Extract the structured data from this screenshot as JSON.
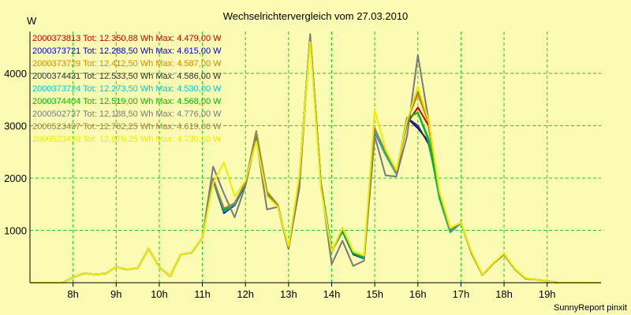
{
  "chart_data": {
    "type": "line",
    "title": "Wechselrichtervergleich vom 27.03.2010",
    "ylabel": "W",
    "xlabel": "",
    "footer": "SunnyReport pinxit",
    "ylim": [
      0,
      4800
    ],
    "xlim": [
      7.0,
      20.25
    ],
    "yticks": [
      1000,
      2000,
      3000,
      4000
    ],
    "ytick_labels": [
      "1000",
      "2000",
      "3000",
      "4000"
    ],
    "xticks": [
      8,
      9,
      10,
      11,
      12,
      13,
      14,
      15,
      16,
      17,
      18,
      19
    ],
    "xtick_labels": [
      "8h",
      "9h",
      "10h",
      "11h",
      "12h",
      "13h",
      "14h",
      "15h",
      "16h",
      "17h",
      "18h",
      "19h"
    ],
    "grid": true,
    "legend_position": "top-left",
    "x": [
      7.0,
      7.25,
      7.5,
      7.75,
      8.0,
      8.25,
      8.5,
      8.75,
      9.0,
      9.25,
      9.5,
      9.75,
      10.0,
      10.25,
      10.5,
      10.75,
      11.0,
      11.25,
      11.5,
      11.75,
      12.0,
      12.25,
      12.5,
      12.75,
      13.0,
      13.25,
      13.5,
      13.75,
      14.0,
      14.25,
      14.5,
      14.75,
      15.0,
      15.25,
      15.5,
      15.75,
      16.0,
      16.25,
      16.5,
      16.75,
      17.0,
      17.25,
      17.5,
      17.75,
      18.0,
      18.25,
      18.5,
      18.75,
      19.0,
      19.25,
      19.5,
      19.75,
      20.0,
      20.25
    ],
    "series": [
      {
        "name": "2000373813",
        "tot": "12.350,88",
        "max": "4.479,00",
        "color": "#cc0000",
        "values": [
          0,
          0,
          0,
          0,
          100,
          180,
          160,
          170,
          300,
          250,
          280,
          650,
          300,
          120,
          540,
          570,
          860,
          1980,
          1400,
          1520,
          1900,
          2850,
          1720,
          1480,
          650,
          2000,
          4700,
          1900,
          600,
          1000,
          560,
          480,
          2900,
          2450,
          2100,
          3050,
          3350,
          3000,
          1700,
          1000,
          1150,
          550,
          150,
          370,
          540,
          260,
          80,
          60,
          30,
          0,
          0,
          0,
          0,
          0
        ]
      },
      {
        "name": "2000373721",
        "tot": "12.288,50",
        "max": "4.615,00",
        "color": "#0000cc",
        "values": [
          0,
          0,
          0,
          0,
          100,
          180,
          160,
          170,
          300,
          250,
          280,
          650,
          300,
          120,
          540,
          570,
          860,
          1950,
          1330,
          1480,
          1880,
          2820,
          1700,
          1460,
          650,
          2000,
          4700,
          1900,
          600,
          980,
          540,
          460,
          2880,
          2440,
          2080,
          3150,
          2950,
          2700,
          1700,
          980,
          1140,
          560,
          150,
          370,
          540,
          260,
          80,
          60,
          30,
          0,
          0,
          0,
          0,
          0
        ]
      },
      {
        "name": "2000373729",
        "tot": "12.412,50",
        "max": "4.587,00",
        "color": "#e08a00",
        "values": [
          0,
          0,
          0,
          0,
          100,
          180,
          160,
          170,
          300,
          250,
          280,
          650,
          300,
          120,
          540,
          570,
          860,
          1960,
          1380,
          1520,
          1920,
          2860,
          1740,
          1490,
          650,
          2000,
          4700,
          1900,
          600,
          1000,
          560,
          480,
          2900,
          2460,
          2090,
          3100,
          3600,
          3050,
          1700,
          1000,
          1150,
          560,
          150,
          370,
          540,
          260,
          80,
          60,
          30,
          0,
          0,
          0,
          0,
          0
        ]
      },
      {
        "name": "2000374431",
        "tot": "12.533,50",
        "max": "4.586,00",
        "color": "#303030",
        "values": [
          0,
          0,
          0,
          0,
          100,
          180,
          160,
          170,
          300,
          250,
          280,
          650,
          300,
          120,
          540,
          570,
          860,
          1980,
          1400,
          1500,
          1900,
          2800,
          1720,
          1480,
          650,
          2000,
          4700,
          1900,
          620,
          1000,
          560,
          480,
          2900,
          2450,
          2080,
          3150,
          3000,
          2650,
          1700,
          1000,
          1150,
          560,
          150,
          370,
          540,
          260,
          80,
          60,
          30,
          0,
          0,
          0,
          0,
          0
        ]
      },
      {
        "name": "2000373724",
        "tot": "12.273,50",
        "max": "4.530,00",
        "color": "#00cccc",
        "values": [
          0,
          0,
          0,
          0,
          100,
          180,
          160,
          170,
          300,
          250,
          280,
          650,
          300,
          120,
          540,
          570,
          860,
          1960,
          1360,
          1500,
          1900,
          2800,
          1700,
          1470,
          650,
          2000,
          4700,
          1900,
          600,
          990,
          560,
          470,
          2900,
          2440,
          2080,
          3150,
          3250,
          2700,
          1600,
          960,
          1140,
          560,
          150,
          370,
          540,
          260,
          80,
          60,
          30,
          0,
          0,
          0,
          0,
          0
        ]
      },
      {
        "name": "2000374404",
        "tot": "12.519,00",
        "max": "4.568,00",
        "color": "#00bb00",
        "values": [
          0,
          0,
          0,
          0,
          100,
          180,
          160,
          170,
          300,
          250,
          280,
          650,
          300,
          120,
          540,
          570,
          860,
          1960,
          1380,
          1520,
          1900,
          2820,
          1700,
          1480,
          650,
          2000,
          4700,
          1900,
          600,
          1000,
          560,
          480,
          2950,
          2480,
          2100,
          3150,
          3250,
          2750,
          1650,
          980,
          1150,
          560,
          150,
          370,
          540,
          260,
          80,
          60,
          30,
          0,
          0,
          0,
          0,
          0
        ]
      },
      {
        "name": "2000502737",
        "tot": "12.188,50",
        "max": "4.776,00",
        "color": "#7a7a7a",
        "values": [
          0,
          0,
          0,
          0,
          100,
          180,
          160,
          170,
          300,
          250,
          280,
          650,
          300,
          120,
          540,
          570,
          860,
          2220,
          1700,
          1250,
          1850,
          2750,
          1400,
          1450,
          650,
          1800,
          4750,
          1900,
          350,
          800,
          320,
          420,
          2800,
          2050,
          2030,
          2800,
          4350,
          3100,
          1700,
          1000,
          1150,
          560,
          150,
          370,
          540,
          260,
          80,
          60,
          30,
          0,
          0,
          0,
          0,
          0
        ]
      },
      {
        "name": "2000523437",
        "tot": "12.762,25",
        "max": "4.619,00",
        "color": "#a0824a",
        "values": [
          0,
          0,
          0,
          0,
          100,
          180,
          160,
          170,
          300,
          250,
          280,
          650,
          300,
          120,
          540,
          570,
          860,
          1980,
          1420,
          1520,
          1920,
          2900,
          1720,
          1480,
          650,
          2000,
          4650,
          1850,
          580,
          1050,
          600,
          520,
          2950,
          2500,
          2100,
          3100,
          3650,
          3100,
          1700,
          1000,
          1150,
          560,
          150,
          370,
          540,
          260,
          80,
          60,
          30,
          0,
          0,
          0,
          0,
          0
        ]
      },
      {
        "name": "2000523438",
        "tot": "12.870,25",
        "max": "4.730,00",
        "color": "#eeee00",
        "values": [
          0,
          0,
          0,
          0,
          100,
          180,
          160,
          170,
          300,
          250,
          280,
          650,
          300,
          120,
          540,
          570,
          860,
          1900,
          2300,
          1650,
          1950,
          2700,
          1650,
          1450,
          700,
          2050,
          4600,
          1800,
          600,
          1050,
          600,
          520,
          3300,
          2550,
          2150,
          3100,
          3750,
          3100,
          1750,
          1050,
          1150,
          580,
          160,
          380,
          560,
          270,
          90,
          60,
          30,
          0,
          0,
          0,
          0,
          0
        ]
      }
    ]
  },
  "legend": {
    "tot_label": "Tot:",
    "tot_unit": "Wh",
    "max_label": "Max:",
    "max_unit": "W"
  }
}
